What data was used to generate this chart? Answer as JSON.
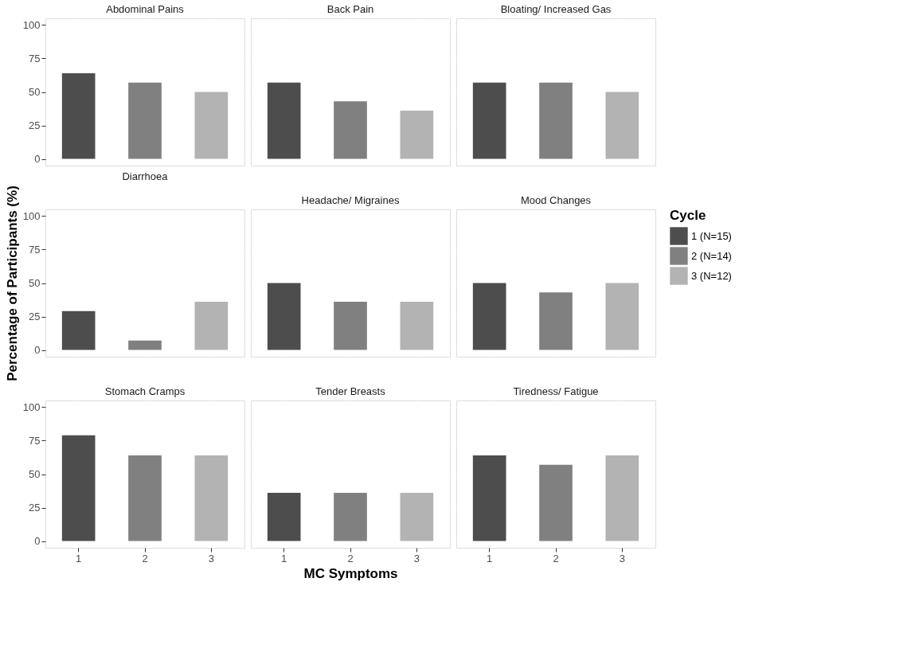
{
  "chart_data": [
    {
      "type": "bar",
      "title": "Abdominal Pains",
      "categories": [
        "1",
        "2",
        "3"
      ],
      "ylim": [
        -5,
        105
      ],
      "yticks": [
        0,
        25,
        50,
        75,
        100
      ],
      "grid": true,
      "tick_labels": "y",
      "series": [
        {
          "color": "#4d4d4d",
          "values": [
            64,
            null,
            null
          ]
        },
        {
          "color": "#808080",
          "values": [
            null,
            57,
            null
          ]
        },
        {
          "color": "#b3b3b3",
          "values": [
            null,
            null,
            50
          ]
        }
      ]
    },
    {
      "type": "bar",
      "title": "Back Pain",
      "categories": [
        "1",
        "2",
        "3"
      ],
      "ylim": [
        -5,
        105
      ],
      "yticks": [
        0,
        25,
        50,
        75,
        100
      ],
      "grid": true,
      "tick_labels": false,
      "series": [
        {
          "color": "#4d4d4d",
          "values": [
            57,
            null,
            null
          ]
        },
        {
          "color": "#808080",
          "values": [
            null,
            43,
            null
          ]
        },
        {
          "color": "#b3b3b3",
          "values": [
            null,
            null,
            36
          ]
        }
      ]
    },
    {
      "type": "bar",
      "title": "Bloating/ Increased Gas",
      "categories": [
        "1",
        "2",
        "3"
      ],
      "ylim": [
        -5,
        105
      ],
      "yticks": [
        0,
        25,
        50,
        75,
        100
      ],
      "grid": true,
      "tick_labels": false,
      "series": [
        {
          "color": "#4d4d4d",
          "values": [
            57,
            null,
            null
          ]
        },
        {
          "color": "#808080",
          "values": [
            null,
            57,
            null
          ]
        },
        {
          "color": "#b3b3b3",
          "values": [
            null,
            null,
            50
          ]
        }
      ]
    },
    {
      "type": "bar",
      "title": "Diarrhoea",
      "ylabel": "Percentage of Participants (%)",
      "categories": [
        "1",
        "2",
        "3"
      ],
      "ylim": [
        -5,
        105
      ],
      "yticks": [
        0,
        25,
        50,
        75,
        100
      ],
      "grid": true,
      "tick_labels": "y",
      "series": [
        {
          "color": "#4d4d4d",
          "values": [
            29,
            null,
            null
          ]
        },
        {
          "color": "#808080",
          "values": [
            null,
            7,
            null
          ]
        },
        {
          "color": "#b3b3b3",
          "values": [
            null,
            null,
            36
          ]
        }
      ]
    },
    {
      "type": "bar",
      "title": "Headache/ Migraines",
      "categories": [
        "1",
        "2",
        "3"
      ],
      "ylim": [
        -5,
        105
      ],
      "yticks": [
        0,
        25,
        50,
        75,
        100
      ],
      "grid": true,
      "tick_labels": false,
      "series": [
        {
          "color": "#4d4d4d",
          "values": [
            50,
            null,
            null
          ]
        },
        {
          "color": "#808080",
          "values": [
            null,
            36,
            null
          ]
        },
        {
          "color": "#b3b3b3",
          "values": [
            null,
            null,
            36
          ]
        }
      ]
    },
    {
      "type": "bar",
      "title": "Mood Changes",
      "categories": [
        "1",
        "2",
        "3"
      ],
      "ylim": [
        -5,
        105
      ],
      "yticks": [
        0,
        25,
        50,
        75,
        100
      ],
      "grid": true,
      "tick_labels": false,
      "legend": "right",
      "legend_title": "Cycle",
      "series": [
        {
          "name": "1 (N=15)",
          "color": "#4d4d4d",
          "values": [
            50,
            null,
            null
          ]
        },
        {
          "name": "2 (N=14)",
          "color": "#808080",
          "values": [
            null,
            43,
            null
          ]
        },
        {
          "name": "3 (N=12)",
          "color": "#b3b3b3",
          "values": [
            null,
            null,
            50
          ]
        }
      ]
    },
    {
      "type": "bar",
      "title": "Stomach Cramps",
      "categories": [
        "1",
        "2",
        "3"
      ],
      "ylim": [
        -5,
        105
      ],
      "yticks": [
        0,
        25,
        50,
        75,
        100
      ],
      "grid": true,
      "series": [
        {
          "color": "#4d4d4d",
          "values": [
            79,
            null,
            null
          ]
        },
        {
          "color": "#808080",
          "values": [
            null,
            64,
            null
          ]
        },
        {
          "color": "#b3b3b3",
          "values": [
            null,
            null,
            64
          ]
        }
      ]
    },
    {
      "type": "bar",
      "title": "Tender Breasts",
      "xlabel": "MC Symptoms",
      "categories": [
        "1",
        "2",
        "3"
      ],
      "ylim": [
        -5,
        105
      ],
      "yticks": [
        0,
        25,
        50,
        75,
        100
      ],
      "grid": true,
      "tick_labels": "x",
      "series": [
        {
          "color": "#4d4d4d",
          "values": [
            36,
            null,
            null
          ]
        },
        {
          "color": "#808080",
          "values": [
            null,
            36,
            null
          ]
        },
        {
          "color": "#b3b3b3",
          "values": [
            null,
            null,
            36
          ]
        }
      ]
    },
    {
      "type": "bar",
      "title": "Tiredness/ Fatigue",
      "categories": [
        "1",
        "2",
        "3"
      ],
      "ylim": [
        -5,
        105
      ],
      "yticks": [
        0,
        25,
        50,
        75,
        100
      ],
      "grid": true,
      "tick_labels": "x",
      "series": [
        {
          "color": "#4d4d4d",
          "values": [
            64,
            null,
            null
          ]
        },
        {
          "color": "#808080",
          "values": [
            null,
            57,
            null
          ]
        },
        {
          "color": "#b3b3b3",
          "values": [
            null,
            null,
            64
          ]
        }
      ]
    }
  ]
}
